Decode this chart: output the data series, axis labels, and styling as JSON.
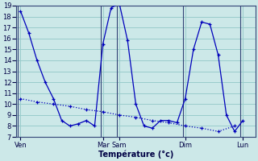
{
  "title": "Température (°c)",
  "background_color": "#cce8e8",
  "grid_color": "#99cccc",
  "line_color": "#0000bb",
  "ylim": [
    7,
    19
  ],
  "yticks": [
    7,
    8,
    9,
    10,
    11,
    12,
    13,
    14,
    15,
    16,
    17,
    18,
    19
  ],
  "x_day_labels": [
    "Ven",
    "Mar",
    "Sam",
    "Dim",
    "Lun"
  ],
  "x_day_positions": [
    0,
    10,
    12,
    20,
    27
  ],
  "x_vlines": [
    0,
    10,
    12,
    20,
    27
  ],
  "xlim": [
    -0.5,
    28.5
  ],
  "line1_x": [
    0,
    1,
    2,
    3,
    4,
    5,
    6,
    7,
    8,
    9,
    10,
    11,
    12,
    13,
    14,
    15,
    16,
    17,
    18,
    19,
    20,
    21,
    22,
    23,
    24,
    25,
    26,
    27
  ],
  "line1_y": [
    18.5,
    16.5,
    14.0,
    12.0,
    10.5,
    8.5,
    8.0,
    8.2,
    8.5,
    8.0,
    15.5,
    18.8,
    19.2,
    15.8,
    10.0,
    8.0,
    7.8,
    8.5,
    8.5,
    8.3,
    10.5,
    15.0,
    17.5,
    17.3,
    14.5,
    9.0,
    7.5,
    8.5
  ],
  "line2_x": [
    0,
    2,
    4,
    6,
    8,
    10,
    12,
    14,
    16,
    18,
    20,
    22,
    24,
    26
  ],
  "line2_y": [
    10.5,
    10.2,
    10.0,
    9.8,
    9.5,
    9.3,
    9.0,
    8.8,
    8.5,
    8.3,
    8.0,
    7.8,
    7.5,
    8.0
  ]
}
